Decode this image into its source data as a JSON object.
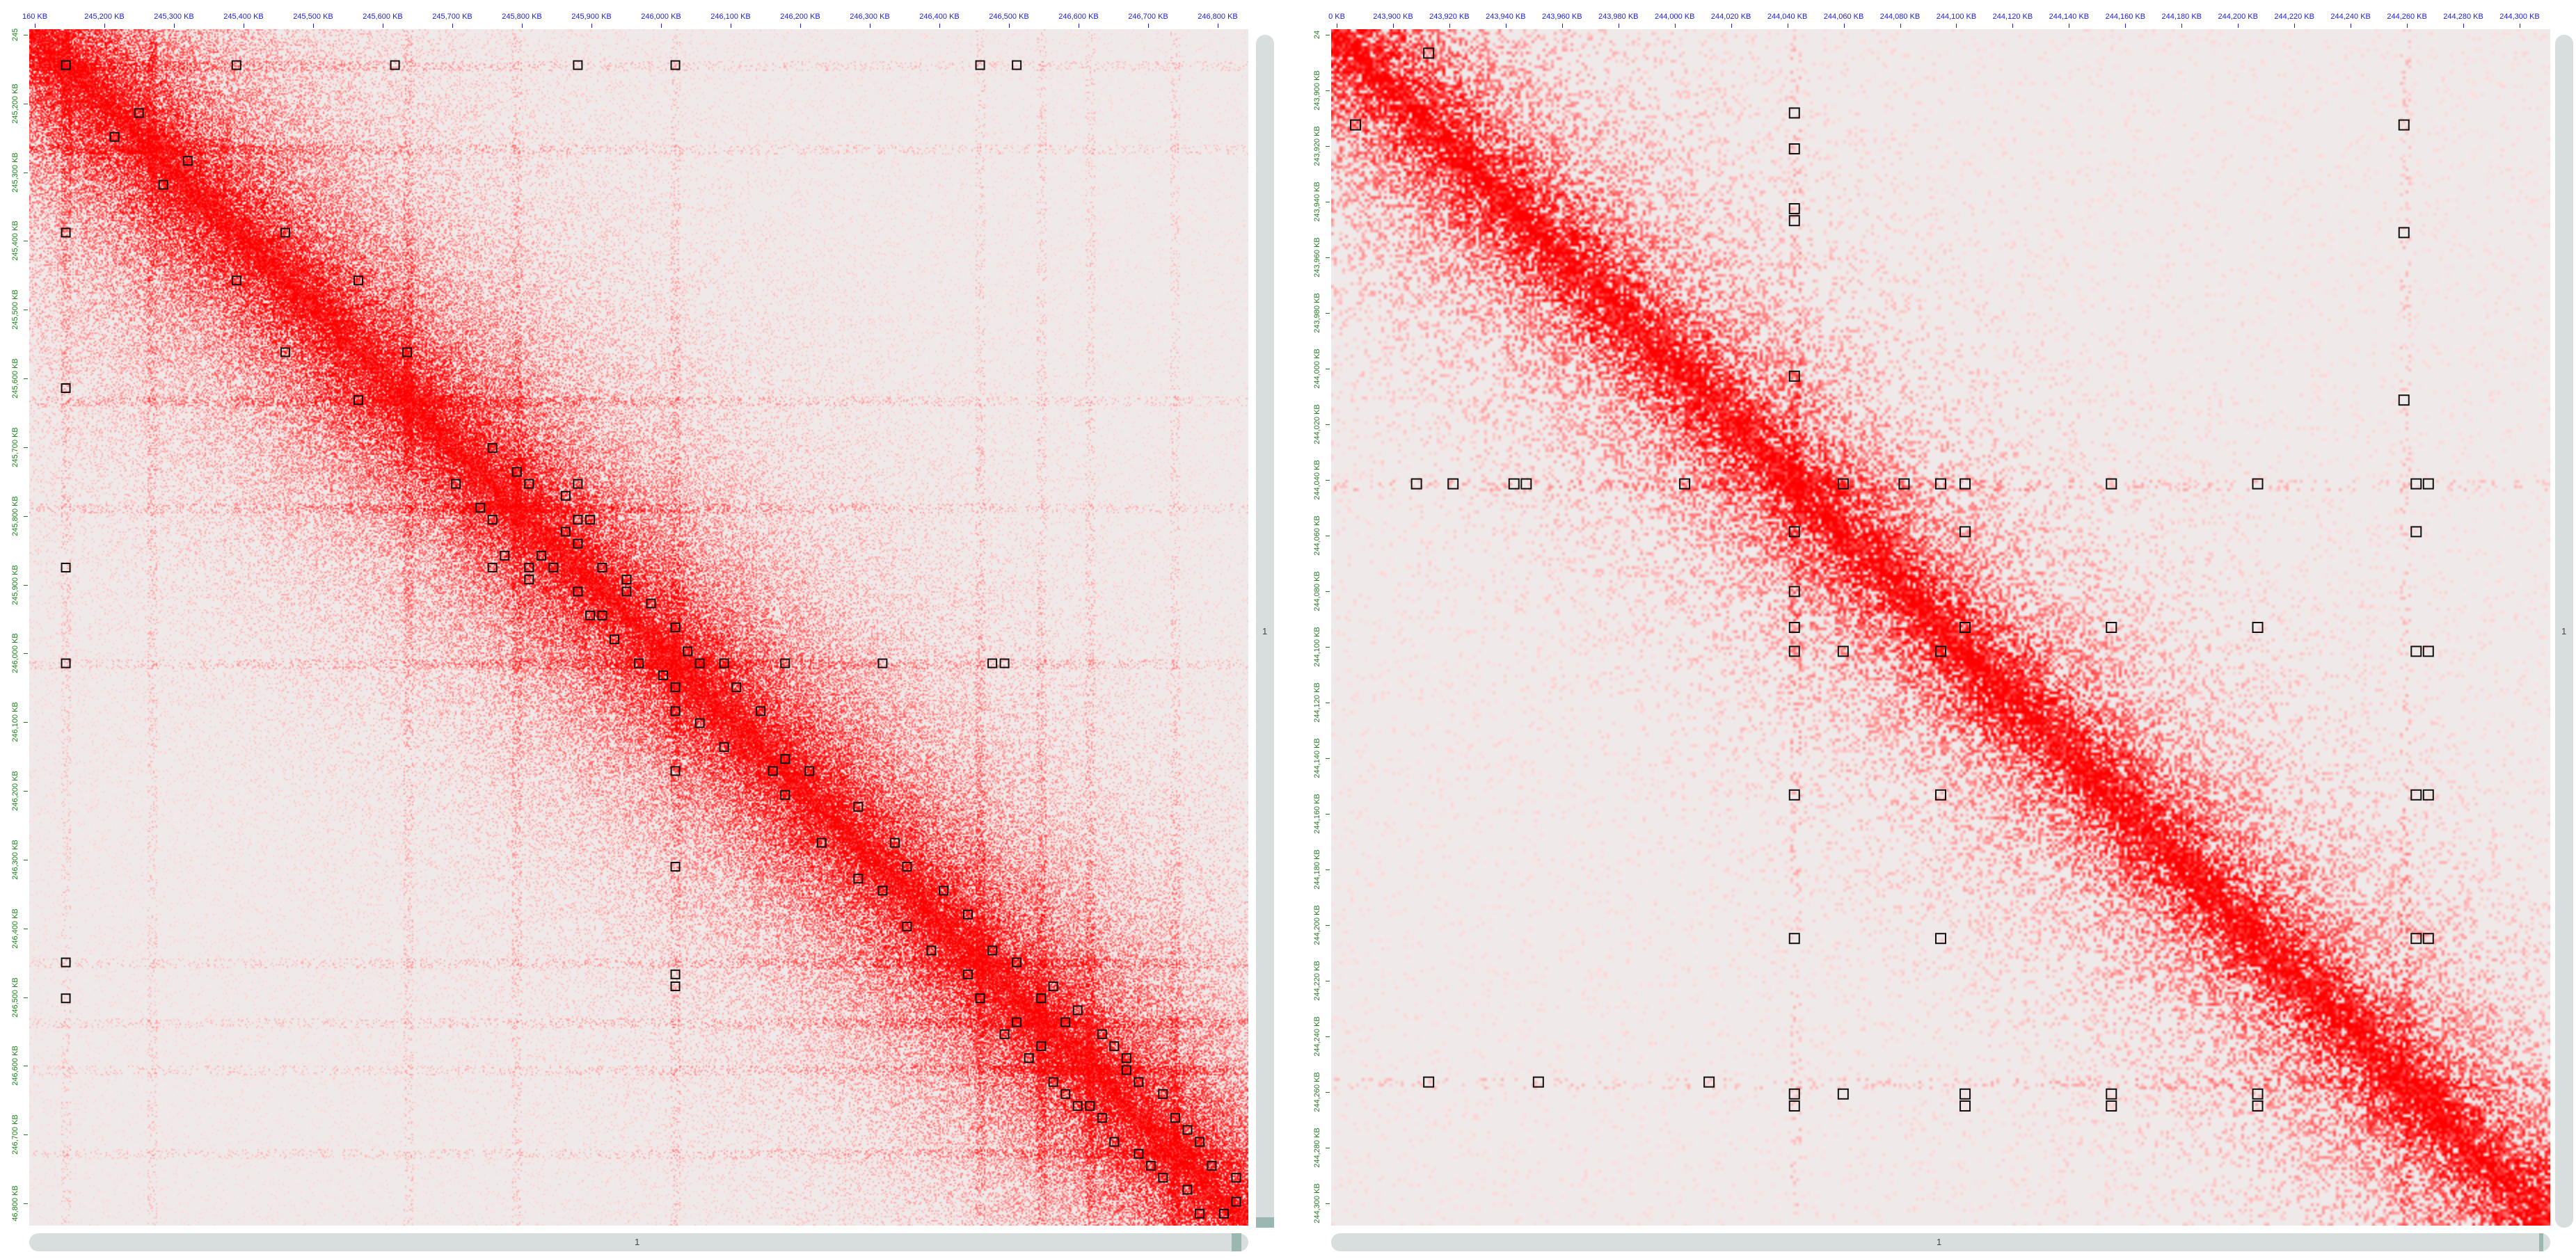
{
  "colors": {
    "heat": "#ff0000",
    "background": "#f0e9e9",
    "x_tick": "#2020dd",
    "y_tick": "#208020"
  },
  "panels": [
    {
      "name": "left",
      "x_ticks": [
        "160 KB",
        "245,200 KB",
        "245,300 KB",
        "245,400 KB",
        "245,500 KB",
        "245,600 KB",
        "245,700 KB",
        "245,800 KB",
        "245,900 KB",
        "246,000 KB",
        "246,100 KB",
        "246,200 KB",
        "246,300 KB",
        "246,400 KB",
        "246,500 KB",
        "246,600 KB",
        "246,700 KB",
        "246,800 KB"
      ],
      "y_ticks": [
        "245",
        "245,200 KB",
        "245,300 KB",
        "245,400 KB",
        "245,500 KB",
        "245,600 KB",
        "245,700 KB",
        "245,800 KB",
        "245,900 KB",
        "246,000 KB",
        "246,100 KB",
        "246,200 KB",
        "246,300 KB",
        "246,400 KB",
        "246,500 KB",
        "246,600 KB",
        "246,700 KB",
        "46,800 KB"
      ],
      "vscroll_label": "1",
      "hscroll_label": "1",
      "vscroll_thumb": "bottom",
      "hscroll_thumb": "right",
      "bands": [
        0.03,
        0.1,
        0.31,
        0.4,
        0.53,
        0.78,
        0.83,
        0.87,
        0.94
      ],
      "loops": [
        [
          0.03,
          0.03
        ],
        [
          0.03,
          0.17
        ],
        [
          0.03,
          0.3
        ],
        [
          0.03,
          0.45
        ],
        [
          0.03,
          0.53
        ],
        [
          0.03,
          0.78
        ],
        [
          0.03,
          0.81
        ],
        [
          0.07,
          0.09
        ],
        [
          0.11,
          0.13
        ],
        [
          0.17,
          0.21
        ],
        [
          0.21,
          0.27
        ],
        [
          0.27,
          0.31
        ],
        [
          0.35,
          0.38
        ],
        [
          0.37,
          0.4
        ],
        [
          0.38,
          0.41
        ],
        [
          0.38,
          0.45
        ],
        [
          0.39,
          0.44
        ],
        [
          0.41,
          0.45
        ],
        [
          0.41,
          0.46
        ],
        [
          0.42,
          0.44
        ],
        [
          0.43,
          0.45
        ],
        [
          0.45,
          0.47
        ],
        [
          0.46,
          0.49
        ],
        [
          0.47,
          0.49
        ],
        [
          0.48,
          0.51
        ],
        [
          0.5,
          0.53
        ],
        [
          0.52,
          0.54
        ],
        [
          0.53,
          0.55
        ],
        [
          0.53,
          0.57
        ],
        [
          0.53,
          0.62
        ],
        [
          0.53,
          0.7
        ],
        [
          0.53,
          0.79
        ],
        [
          0.53,
          0.8
        ],
        [
          0.55,
          0.58
        ],
        [
          0.57,
          0.6
        ],
        [
          0.61,
          0.62
        ],
        [
          0.62,
          0.64
        ],
        [
          0.65,
          0.68
        ],
        [
          0.68,
          0.71
        ],
        [
          0.7,
          0.72
        ],
        [
          0.72,
          0.75
        ],
        [
          0.74,
          0.77
        ],
        [
          0.77,
          0.79
        ],
        [
          0.78,
          0.81
        ],
        [
          0.8,
          0.84
        ],
        [
          0.81,
          0.83
        ],
        [
          0.82,
          0.86
        ],
        [
          0.83,
          0.85
        ],
        [
          0.84,
          0.88
        ],
        [
          0.85,
          0.89
        ],
        [
          0.86,
          0.9
        ],
        [
          0.87,
          0.9
        ],
        [
          0.88,
          0.91
        ],
        [
          0.89,
          0.93
        ],
        [
          0.91,
          0.94
        ],
        [
          0.92,
          0.95
        ],
        [
          0.93,
          0.96
        ],
        [
          0.95,
          0.97
        ],
        [
          0.96,
          0.99
        ],
        [
          0.98,
          0.99
        ]
      ]
    },
    {
      "name": "right",
      "x_ticks": [
        "0 KB",
        "243,900 KB",
        "243,920 KB",
        "243,940 KB",
        "243,960 KB",
        "243,980 KB",
        "244,000 KB",
        "244,020 KB",
        "244,040 KB",
        "244,060 KB",
        "244,080 KB",
        "244,100 KB",
        "244,120 KB",
        "244,140 KB",
        "244,160 KB",
        "244,180 KB",
        "244,200 KB",
        "244,220 KB",
        "244,240 KB",
        "244,260 KB",
        "244,280 KB",
        "244,300 KB"
      ],
      "y_ticks": [
        "24",
        "243,900 KB",
        "243,920 KB",
        "243,940 KB",
        "243,960 KB",
        "243,980 KB",
        "244,000 KB",
        "244,020 KB",
        "244,040 KB",
        "244,060 KB",
        "244,080 KB",
        "244,100 KB",
        "244,120 KB",
        "244,140 KB",
        "244,160 KB",
        "244,180 KB",
        "244,200 KB",
        "244,220 KB",
        "244,240 KB",
        "244,260 KB",
        "244,280 KB",
        "244,300 KB"
      ],
      "vscroll_label": "1",
      "hscroll_label": "1",
      "vscroll_thumb": "none",
      "hscroll_thumb": "right",
      "bands": [
        0.38,
        0.88
      ],
      "loops": [
        [
          0.02,
          0.08
        ],
        [
          0.07,
          0.38
        ],
        [
          0.08,
          0.88
        ],
        [
          0.1,
          0.38
        ],
        [
          0.15,
          0.38
        ],
        [
          0.16,
          0.38
        ],
        [
          0.17,
          0.88
        ],
        [
          0.29,
          0.38
        ],
        [
          0.31,
          0.88
        ],
        [
          0.38,
          0.42
        ],
        [
          0.38,
          0.47
        ],
        [
          0.38,
          0.5
        ],
        [
          0.38,
          0.52
        ],
        [
          0.38,
          0.64
        ],
        [
          0.38,
          0.76
        ],
        [
          0.38,
          0.89
        ],
        [
          0.38,
          0.9
        ],
        [
          0.42,
          0.52
        ],
        [
          0.42,
          0.89
        ],
        [
          0.5,
          0.52
        ],
        [
          0.5,
          0.64
        ],
        [
          0.5,
          0.76
        ],
        [
          0.52,
          0.89
        ],
        [
          0.52,
          0.9
        ],
        [
          0.64,
          0.89
        ],
        [
          0.64,
          0.9
        ],
        [
          0.76,
          0.89
        ],
        [
          0.76,
          0.9
        ]
      ]
    }
  ]
}
